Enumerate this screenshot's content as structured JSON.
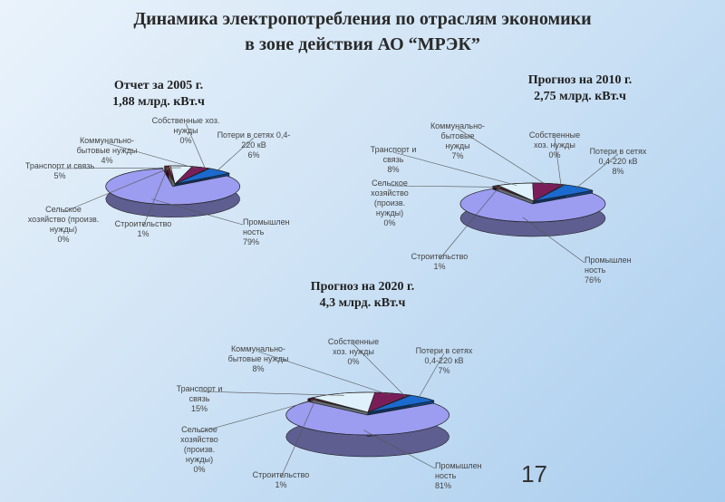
{
  "title": {
    "line1": "Динамика электропотребления по отраслям экономики",
    "line2": "в зоне действия АО “МРЭК”"
  },
  "page_number": "17",
  "colors": {
    "industry": "#9c9cf0",
    "construction": "#6a1a36",
    "agriculture": "#ffffcc",
    "transport": "#dff2fb",
    "communal": "#7a1e5a",
    "own_needs": "#f0826e",
    "losses": "#1a6ad0"
  },
  "chart_data": [
    {
      "type": "pie",
      "title_line1": "Отчет за 2005 г.",
      "title_line2": "1,88 млрд. кВт.ч",
      "slices": [
        {
          "key": "industry",
          "label_lines": [
            "Промышлен",
            "ность",
            "79%"
          ],
          "value": 79
        },
        {
          "key": "construction",
          "label_lines": [
            "Строительство",
            "1%"
          ],
          "value": 1
        },
        {
          "key": "agriculture",
          "label_lines": [
            "Сельское",
            "хозяйство (произв.",
            "нужды)",
            "0%"
          ],
          "value": 0
        },
        {
          "key": "transport",
          "label_lines": [
            "Транспорт и связь",
            "5%"
          ],
          "value": 5
        },
        {
          "key": "communal",
          "label_lines": [
            "Коммунально-",
            "бытовые нужды",
            "4%"
          ],
          "value": 4
        },
        {
          "key": "own_needs",
          "label_lines": [
            "Собственные хоз.",
            "нужды",
            "0%"
          ],
          "value": 0
        },
        {
          "key": "losses",
          "label_lines": [
            "Потери в сетях 0,4-",
            "220 кВ",
            "6%"
          ],
          "value": 6
        }
      ]
    },
    {
      "type": "pie",
      "title_line1": "Прогноз на 2010 г.",
      "title_line2": "2,75 млрд. кВт.ч",
      "slices": [
        {
          "key": "industry",
          "label_lines": [
            "Промышлен",
            "ность",
            "76%"
          ],
          "value": 76
        },
        {
          "key": "construction",
          "label_lines": [
            "Строительство",
            "1%"
          ],
          "value": 1
        },
        {
          "key": "agriculture",
          "label_lines": [
            "Сельское",
            "хозяйство",
            "(произв.",
            "нужды)",
            "0%"
          ],
          "value": 0
        },
        {
          "key": "transport",
          "label_lines": [
            "Транспорт и",
            "связь",
            "8%"
          ],
          "value": 8
        },
        {
          "key": "communal",
          "label_lines": [
            "Коммунально-",
            "бытовые",
            "нужды",
            "7%"
          ],
          "value": 7
        },
        {
          "key": "own_needs",
          "label_lines": [
            "Собственные",
            "хоз. нужды",
            "0%"
          ],
          "value": 0
        },
        {
          "key": "losses",
          "label_lines": [
            "Потери в сетях",
            "0,4-220 кВ",
            "8%"
          ],
          "value": 8
        }
      ]
    },
    {
      "type": "pie",
      "title_line1": "Прогноз на 2020 г.",
      "title_line2": "4,3 млрд. кВт.ч",
      "slices": [
        {
          "key": "industry",
          "label_lines": [
            "Промышлен",
            "ность",
            "81%"
          ],
          "value": 81
        },
        {
          "key": "construction",
          "label_lines": [
            "Строительство",
            "1%"
          ],
          "value": 1
        },
        {
          "key": "agriculture",
          "label_lines": [
            "Сельское",
            "хозяйство",
            "(произв.",
            "нужды)",
            "0%"
          ],
          "value": 0
        },
        {
          "key": "transport",
          "label_lines": [
            "Транспорт и",
            "связь",
            "15%"
          ],
          "value": 15
        },
        {
          "key": "communal",
          "label_lines": [
            "Коммунально-",
            "бытовые нужды",
            "8%"
          ],
          "value": 8
        },
        {
          "key": "own_needs",
          "label_lines": [
            "Собственные",
            "хоз. нужды",
            "0%"
          ],
          "value": 0
        },
        {
          "key": "losses",
          "label_lines": [
            "Потери в сетях",
            "0,4-220 кВ",
            "7%"
          ],
          "value": 7
        }
      ]
    }
  ]
}
